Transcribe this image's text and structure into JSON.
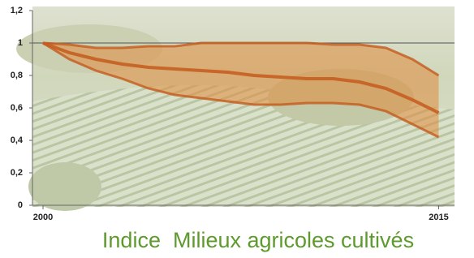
{
  "chart_data": {
    "type": "line",
    "title": "Indice  Milieux agricoles cultivés",
    "x": [
      2000,
      2001,
      2002,
      2003,
      2004,
      2005,
      2006,
      2007,
      2008,
      2009,
      2010,
      2011,
      2012,
      2013,
      2014,
      2015
    ],
    "series": [
      {
        "color": "#c45a1c",
        "values": [
          1.0,
          0.94,
          0.9,
          0.87,
          0.85,
          0.84,
          0.83,
          0.82,
          0.8,
          0.79,
          0.78,
          0.78,
          0.76,
          0.72,
          0.65,
          0.57
        ],
        "upper": [
          1.0,
          0.99,
          0.97,
          0.97,
          0.98,
          0.98,
          1.0,
          1.0,
          1.0,
          1.0,
          1.0,
          0.99,
          0.99,
          0.97,
          0.9,
          0.8
        ],
        "lower": [
          1.0,
          0.9,
          0.83,
          0.78,
          0.72,
          0.68,
          0.66,
          0.64,
          0.62,
          0.62,
          0.63,
          0.63,
          0.62,
          0.58,
          0.5,
          0.42
        ]
      }
    ],
    "band_color": "#e08a3c",
    "reference_line": 1,
    "xlim": [
      1999.6,
      2015.6
    ],
    "ylim": [
      0,
      1.2
    ],
    "xticks": [
      2000,
      2015
    ],
    "yticks": [
      0,
      {
        "value": 0.2,
        "label": "0,2"
      },
      {
        "value": 0.4,
        "label": "0,4"
      },
      {
        "value": 0.6,
        "label": "0,6"
      },
      {
        "value": 0.8,
        "label": "0,8"
      },
      1,
      {
        "value": 1.2,
        "label": "1,2"
      }
    ]
  }
}
